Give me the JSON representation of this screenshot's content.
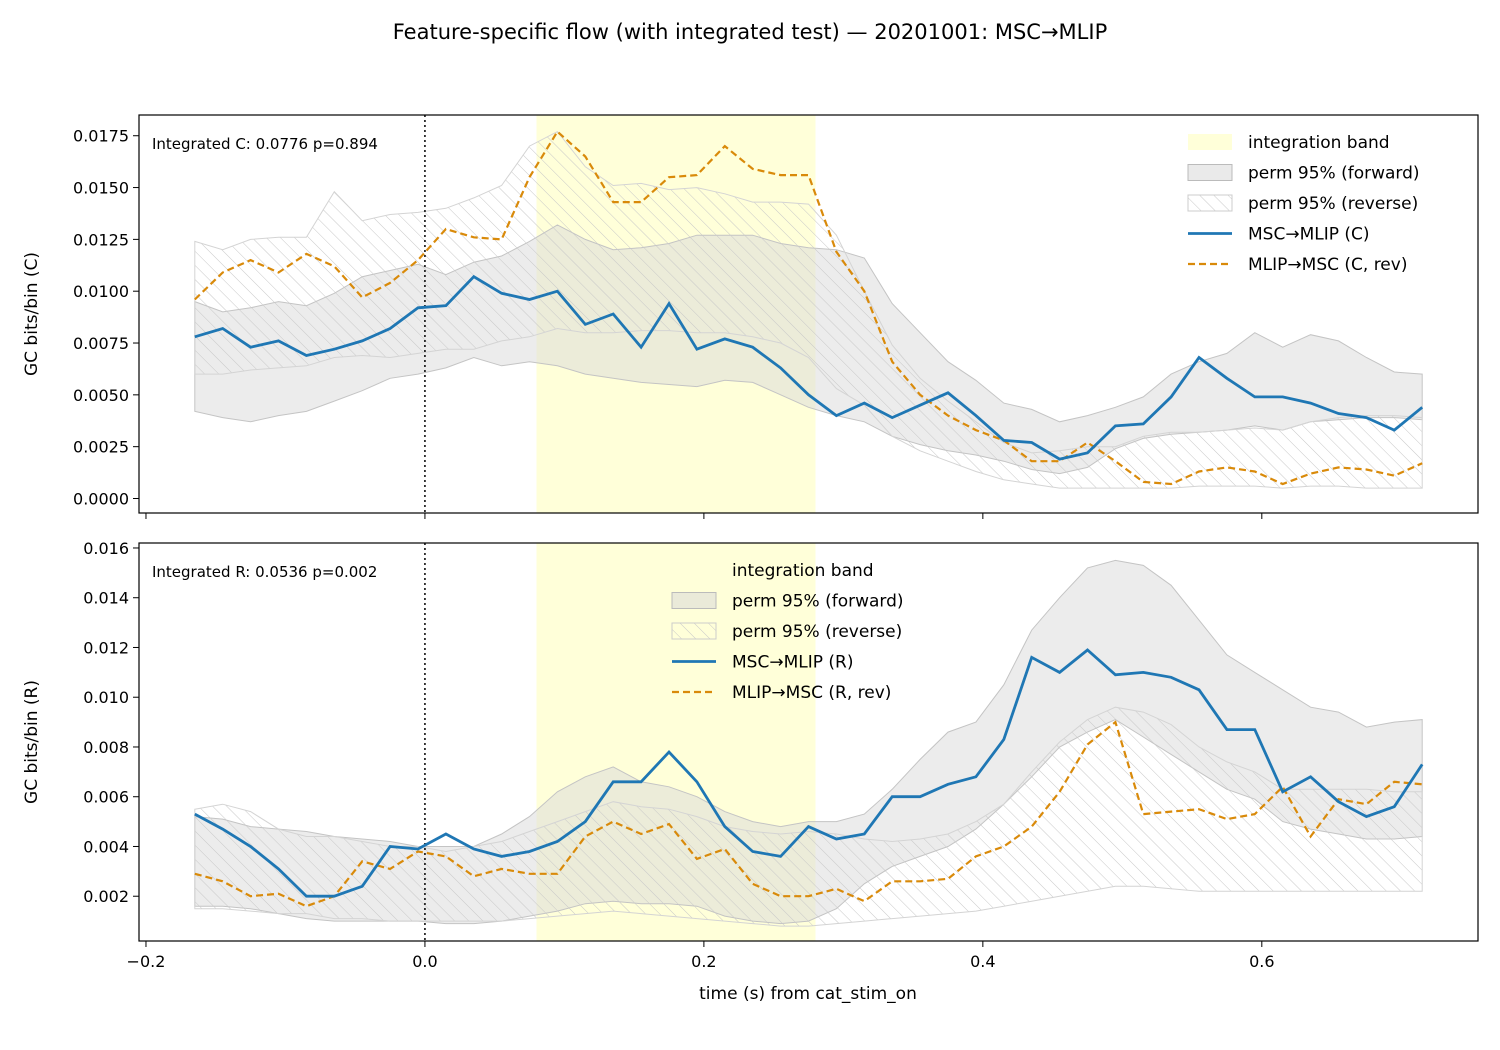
{
  "figure_title": "Feature-specific flow (with integrated test) — 20201001: MSC→MLIP",
  "xlabel": "time (s) from cat_stim_on",
  "colors": {
    "forward": "#1f77b4",
    "reverse": "#d98a0a",
    "band": "#ffffd9",
    "perm_fill": "#d9d9d9",
    "hatch": "#c8c8c8"
  },
  "chart_data": [
    {
      "type": "line",
      "ylabel": "GC bits/bin (C)",
      "annotation": "Integrated C: 0.0776  p=0.894",
      "xlim": [
        -0.205,
        0.755
      ],
      "ylim": [
        -0.0007,
        0.0185
      ],
      "xticks": [
        -0.2,
        0.0,
        0.2,
        0.4,
        0.6
      ],
      "yticks": [
        0.0,
        0.0025,
        0.005,
        0.0075,
        0.01,
        0.0125,
        0.015,
        0.0175
      ],
      "ytick_labels": [
        "0.0000",
        "0.0025",
        "0.0050",
        "0.0075",
        "0.0100",
        "0.0125",
        "0.0150",
        "0.0175"
      ],
      "vline_x": 0.0,
      "integration_band": [
        0.08,
        0.28
      ],
      "legend": {
        "position": "top-right",
        "entries": [
          "integration band",
          "perm 95% (forward)",
          "perm 95% (reverse)",
          "MSC→MLIP (C)",
          "MLIP→MSC (C, rev)"
        ]
      },
      "x": [
        -0.165,
        -0.145,
        -0.125,
        -0.105,
        -0.085,
        -0.065,
        -0.045,
        -0.025,
        -0.005,
        0.015,
        0.035,
        0.055,
        0.075,
        0.095,
        0.115,
        0.135,
        0.155,
        0.175,
        0.195,
        0.215,
        0.235,
        0.255,
        0.275,
        0.295,
        0.315,
        0.335,
        0.355,
        0.375,
        0.395,
        0.415,
        0.435,
        0.455,
        0.475,
        0.495,
        0.515,
        0.535,
        0.555,
        0.575,
        0.595,
        0.615,
        0.635,
        0.655,
        0.675,
        0.695,
        0.715
      ],
      "series": [
        {
          "name": "MSC→MLIP (C)",
          "style": "solid",
          "values": [
            0.0078,
            0.0082,
            0.0073,
            0.0076,
            0.0069,
            0.0072,
            0.0076,
            0.0082,
            0.0092,
            0.0093,
            0.0107,
            0.0099,
            0.0096,
            0.01,
            0.0084,
            0.0089,
            0.0073,
            0.0094,
            0.0072,
            0.0077,
            0.0073,
            0.0063,
            0.005,
            0.004,
            0.0046,
            0.0039,
            0.0045,
            0.0051,
            0.004,
            0.0028,
            0.0027,
            0.0019,
            0.0022,
            0.0035,
            0.0036,
            0.0049,
            0.0068,
            0.0058,
            0.0049,
            0.0049,
            0.0046,
            0.0041,
            0.0039,
            0.0033,
            0.0044
          ]
        },
        {
          "name": "MLIP→MSC (C, rev)",
          "style": "dashed",
          "values": [
            0.0096,
            0.0109,
            0.0115,
            0.0109,
            0.0118,
            0.0112,
            0.0097,
            0.0104,
            0.0115,
            0.013,
            0.0126,
            0.0125,
            0.0155,
            0.0177,
            0.0165,
            0.0143,
            0.0143,
            0.0155,
            0.0156,
            0.017,
            0.0159,
            0.0156,
            0.0156,
            0.0119,
            0.01,
            0.0066,
            0.005,
            0.004,
            0.0033,
            0.0028,
            0.0018,
            0.0018,
            0.0027,
            0.0018,
            0.0008,
            0.0007,
            0.0013,
            0.0015,
            0.0013,
            0.0007,
            0.0012,
            0.0015,
            0.0014,
            0.0011,
            0.0017
          ]
        }
      ],
      "perm_forward": {
        "lower": [
          0.0042,
          0.0039,
          0.0037,
          0.004,
          0.0042,
          0.0047,
          0.0052,
          0.0058,
          0.006,
          0.0063,
          0.0068,
          0.0064,
          0.0066,
          0.0064,
          0.006,
          0.0058,
          0.0056,
          0.0055,
          0.0054,
          0.0057,
          0.0056,
          0.005,
          0.0044,
          0.004,
          0.0037,
          0.003,
          0.0026,
          0.0023,
          0.0021,
          0.0018,
          0.0014,
          0.0012,
          0.0015,
          0.0024,
          0.0029,
          0.0031,
          0.0032,
          0.0033,
          0.0035,
          0.0033,
          0.0037,
          0.0038,
          0.0039,
          0.0039,
          0.0038
        ],
        "upper": [
          0.0095,
          0.009,
          0.0092,
          0.0095,
          0.0093,
          0.0099,
          0.0107,
          0.011,
          0.0113,
          0.0108,
          0.0114,
          0.0117,
          0.0124,
          0.0132,
          0.0125,
          0.012,
          0.0121,
          0.0123,
          0.0127,
          0.0127,
          0.0127,
          0.0123,
          0.0121,
          0.012,
          0.0116,
          0.0094,
          0.008,
          0.0066,
          0.0057,
          0.0046,
          0.0043,
          0.0037,
          0.004,
          0.0044,
          0.0049,
          0.006,
          0.0066,
          0.007,
          0.008,
          0.0073,
          0.0079,
          0.0076,
          0.0068,
          0.0061,
          0.006
        ]
      },
      "perm_reverse": {
        "lower": [
          0.006,
          0.006,
          0.0062,
          0.0063,
          0.0064,
          0.0068,
          0.0069,
          0.0068,
          0.007,
          0.0072,
          0.0072,
          0.0076,
          0.0078,
          0.0082,
          0.008,
          0.008,
          0.0081,
          0.0081,
          0.008,
          0.008,
          0.0078,
          0.0075,
          0.0068,
          0.0053,
          0.0045,
          0.003,
          0.0023,
          0.0018,
          0.0013,
          0.0009,
          0.0007,
          0.0005,
          0.0005,
          0.0005,
          0.0005,
          0.0005,
          0.0006,
          0.0006,
          0.0006,
          0.0005,
          0.0006,
          0.0006,
          0.0005,
          0.0005,
          0.0005
        ],
        "upper": [
          0.0124,
          0.012,
          0.0125,
          0.0126,
          0.0126,
          0.0148,
          0.0134,
          0.0137,
          0.0138,
          0.014,
          0.0145,
          0.0151,
          0.017,
          0.0177,
          0.016,
          0.0151,
          0.0152,
          0.0149,
          0.015,
          0.0147,
          0.0143,
          0.0143,
          0.0142,
          0.0127,
          0.01,
          0.0074,
          0.0058,
          0.0047,
          0.0037,
          0.0027,
          0.0022,
          0.0023,
          0.0025,
          0.0025,
          0.003,
          0.0032,
          0.0032,
          0.0033,
          0.0034,
          0.0033,
          0.0037,
          0.0039,
          0.004,
          0.004,
          0.0039
        ]
      }
    },
    {
      "type": "line",
      "ylabel": "GC bits/bin (R)",
      "annotation": "Integrated R: 0.0536  p=0.002",
      "xlim": [
        -0.205,
        0.755
      ],
      "ylim": [
        0.0002,
        0.0162
      ],
      "xticks": [
        -0.2,
        0.0,
        0.2,
        0.4,
        0.6
      ],
      "xtick_labels": [
        "−0.2",
        "0.0",
        "0.2",
        "0.4",
        "0.6"
      ],
      "yticks": [
        0.002,
        0.004,
        0.006,
        0.008,
        0.01,
        0.012,
        0.014,
        0.016
      ],
      "ytick_labels": [
        "0.002",
        "0.004",
        "0.006",
        "0.008",
        "0.010",
        "0.012",
        "0.014",
        "0.016"
      ],
      "vline_x": 0.0,
      "integration_band": [
        0.08,
        0.28
      ],
      "legend": {
        "position": "upper-center",
        "entries": [
          "integration band",
          "perm 95% (forward)",
          "perm 95% (reverse)",
          "MSC→MLIP (R)",
          "MLIP→MSC (R, rev)"
        ]
      },
      "x": [
        -0.165,
        -0.145,
        -0.125,
        -0.105,
        -0.085,
        -0.065,
        -0.045,
        -0.025,
        -0.005,
        0.015,
        0.035,
        0.055,
        0.075,
        0.095,
        0.115,
        0.135,
        0.155,
        0.175,
        0.195,
        0.215,
        0.235,
        0.255,
        0.275,
        0.295,
        0.315,
        0.335,
        0.355,
        0.375,
        0.395,
        0.415,
        0.435,
        0.455,
        0.475,
        0.495,
        0.515,
        0.535,
        0.555,
        0.575,
        0.595,
        0.615,
        0.635,
        0.655,
        0.675,
        0.695,
        0.715
      ],
      "series": [
        {
          "name": "MSC→MLIP (R)",
          "style": "solid",
          "values": [
            0.0053,
            0.0047,
            0.004,
            0.0031,
            0.002,
            0.002,
            0.0024,
            0.004,
            0.0039,
            0.0045,
            0.0039,
            0.0036,
            0.0038,
            0.0042,
            0.005,
            0.0066,
            0.0066,
            0.0078,
            0.0066,
            0.0048,
            0.0038,
            0.0036,
            0.0048,
            0.0043,
            0.0045,
            0.006,
            0.006,
            0.0065,
            0.0068,
            0.0083,
            0.0116,
            0.011,
            0.0119,
            0.0109,
            0.011,
            0.0108,
            0.0103,
            0.0087,
            0.0087,
            0.0062,
            0.0068,
            0.0058,
            0.0052,
            0.0056,
            0.0073
          ]
        },
        {
          "name": "MLIP→MSC (R, rev)",
          "style": "dashed",
          "values": [
            0.0029,
            0.0026,
            0.002,
            0.0021,
            0.0016,
            0.002,
            0.0034,
            0.0031,
            0.0038,
            0.0036,
            0.0028,
            0.0031,
            0.0029,
            0.0029,
            0.0044,
            0.005,
            0.0045,
            0.0049,
            0.0035,
            0.0039,
            0.0025,
            0.002,
            0.002,
            0.0023,
            0.0018,
            0.0026,
            0.0026,
            0.0027,
            0.0036,
            0.004,
            0.0048,
            0.0062,
            0.0081,
            0.009,
            0.0053,
            0.0054,
            0.0055,
            0.0051,
            0.0053,
            0.0064,
            0.0044,
            0.0059,
            0.0057,
            0.0066,
            0.0065
          ]
        }
      ],
      "perm_forward": {
        "lower": [
          0.0016,
          0.0016,
          0.0015,
          0.0013,
          0.0011,
          0.001,
          0.001,
          0.001,
          0.001,
          0.0009,
          0.0009,
          0.001,
          0.0012,
          0.0014,
          0.0017,
          0.0018,
          0.0017,
          0.0017,
          0.0016,
          0.0012,
          0.001,
          0.0009,
          0.001,
          0.0015,
          0.0025,
          0.0032,
          0.0036,
          0.004,
          0.0047,
          0.0057,
          0.0068,
          0.008,
          0.0086,
          0.0091,
          0.0084,
          0.0077,
          0.007,
          0.0063,
          0.0059,
          0.005,
          0.0047,
          0.0045,
          0.0043,
          0.0043,
          0.0044
        ],
        "upper": [
          0.0052,
          0.0051,
          0.0048,
          0.0047,
          0.0046,
          0.0044,
          0.0043,
          0.0042,
          0.004,
          0.004,
          0.004,
          0.0045,
          0.0052,
          0.0062,
          0.0068,
          0.0072,
          0.0066,
          0.0064,
          0.006,
          0.0054,
          0.005,
          0.0048,
          0.005,
          0.005,
          0.0053,
          0.0063,
          0.0075,
          0.0086,
          0.009,
          0.0105,
          0.0127,
          0.014,
          0.0152,
          0.0155,
          0.0153,
          0.0145,
          0.0131,
          0.0117,
          0.011,
          0.0103,
          0.0096,
          0.0094,
          0.0088,
          0.009,
          0.0091
        ]
      },
      "perm_reverse": {
        "lower": [
          0.0015,
          0.0015,
          0.0014,
          0.0013,
          0.0013,
          0.0011,
          0.0011,
          0.001,
          0.001,
          0.001,
          0.001,
          0.001,
          0.0011,
          0.0012,
          0.0013,
          0.0014,
          0.0013,
          0.0012,
          0.0011,
          0.001,
          0.0009,
          0.0008,
          0.0008,
          0.0009,
          0.001,
          0.0011,
          0.0012,
          0.0013,
          0.0014,
          0.0016,
          0.0018,
          0.002,
          0.0022,
          0.0024,
          0.0024,
          0.0023,
          0.0022,
          0.0022,
          0.0022,
          0.0022,
          0.0022,
          0.0022,
          0.0022,
          0.0022,
          0.0022
        ],
        "upper": [
          0.0055,
          0.0057,
          0.0054,
          0.0047,
          0.0044,
          0.0044,
          0.0042,
          0.004,
          0.004,
          0.0038,
          0.004,
          0.0042,
          0.0046,
          0.005,
          0.0054,
          0.0058,
          0.0056,
          0.0055,
          0.0052,
          0.0048,
          0.0046,
          0.0045,
          0.0046,
          0.0045,
          0.0043,
          0.0042,
          0.0043,
          0.0045,
          0.005,
          0.0057,
          0.007,
          0.0082,
          0.0091,
          0.0096,
          0.0094,
          0.0089,
          0.008,
          0.0074,
          0.007,
          0.0063,
          0.0063,
          0.0063,
          0.0063,
          0.0062,
          0.0062
        ]
      }
    }
  ]
}
